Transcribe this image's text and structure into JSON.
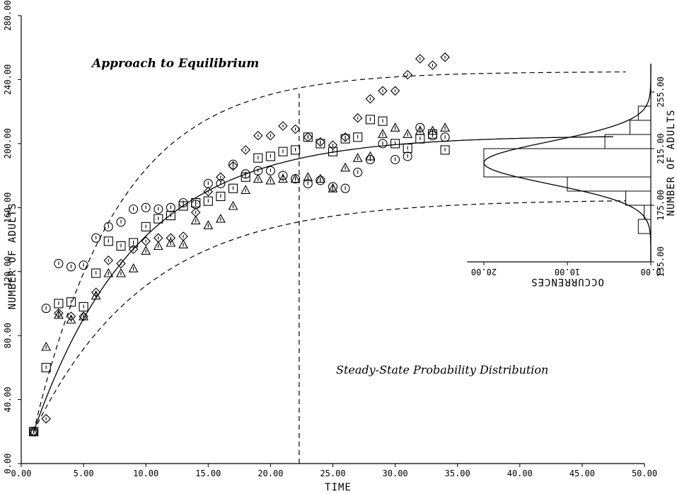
{
  "chart_data": {
    "type": "scatter",
    "xlabel": "TIME",
    "ylabel": "NUMBER OF ADULTS",
    "xlim": [
      0,
      50
    ],
    "ylim": [
      0,
      280
    ],
    "x_ticks": [
      "0.00",
      "5.00",
      "10.00",
      "15.00",
      "20.00",
      "25.00",
      "30.00",
      "35.00",
      "40.00",
      "45.00",
      "50.00"
    ],
    "y_ticks": [
      "0.00",
      "40.00",
      "80.00",
      "120.00",
      "160.00",
      "200.00",
      "240.00",
      "280.00"
    ],
    "annotations": [
      "Approach to Equilibrium",
      "Steady-State Probability Distribution"
    ],
    "equilibrium_time": 22.3,
    "series": [
      {
        "marker": "circle",
        "x": [
          1,
          2,
          3,
          4,
          5,
          6,
          7,
          8,
          9,
          10,
          11,
          12,
          13,
          14,
          15,
          16,
          17,
          18,
          19,
          20,
          21,
          22,
          23,
          24,
          25,
          26,
          27,
          28,
          29,
          30,
          31,
          32,
          33,
          34
        ],
        "y": [
          20,
          97,
          125,
          123,
          124,
          141,
          148,
          151,
          159,
          160,
          159,
          160,
          163,
          162,
          175,
          175,
          187,
          181,
          183,
          183,
          180,
          178,
          175,
          177,
          173,
          172,
          182,
          190,
          200,
          190,
          192,
          210,
          205,
          204
        ]
      },
      {
        "marker": "square",
        "x": [
          1,
          2,
          3,
          4,
          5,
          6,
          7,
          8,
          9,
          10,
          11,
          12,
          13,
          14,
          15,
          16,
          17,
          18,
          19,
          20,
          21,
          22,
          23,
          24,
          25,
          26,
          27,
          28,
          29,
          30,
          31,
          32,
          33,
          34
        ],
        "y": [
          20,
          60,
          100,
          101,
          98,
          119,
          139,
          136,
          138,
          148,
          153,
          155,
          161,
          163,
          164,
          167,
          172,
          179,
          191,
          192,
          195,
          196,
          204,
          200,
          195,
          203,
          204,
          215,
          214,
          200,
          197,
          203,
          206,
          196
        ]
      },
      {
        "marker": "triangle",
        "x": [
          1,
          2,
          3,
          4,
          5,
          6,
          7,
          8,
          9,
          10,
          11,
          12,
          13,
          14,
          15,
          16,
          17,
          18,
          19,
          20,
          21,
          22,
          23,
          24,
          25,
          26,
          27,
          28,
          29,
          30,
          31,
          32,
          33,
          34
        ],
        "y": [
          20,
          73,
          93,
          90,
          92,
          105,
          119,
          119,
          122,
          133,
          136,
          138,
          137,
          152,
          149,
          153,
          161,
          171,
          178,
          177,
          178,
          178,
          179,
          178,
          172,
          185,
          191,
          192,
          206,
          210,
          206,
          208,
          208,
          210
        ]
      },
      {
        "marker": "diamond",
        "x": [
          1,
          2,
          3,
          4,
          5,
          6,
          7,
          8,
          9,
          10,
          11,
          12,
          13,
          14,
          15,
          16,
          17,
          18,
          19,
          20,
          21,
          22,
          23,
          24,
          25,
          26,
          27,
          28,
          29,
          30,
          31,
          32,
          33,
          34
        ],
        "y": [
          20,
          28,
          94,
          92,
          92,
          107,
          127,
          125,
          134,
          139,
          141,
          141,
          142,
          157,
          170,
          179,
          186,
          196,
          205,
          205,
          211,
          209,
          204,
          201,
          199,
          204,
          216,
          228,
          233,
          233,
          243,
          253,
          249,
          254
        ]
      }
    ],
    "mean_curve": {
      "equilibrium": 205,
      "initial": 20,
      "rate": 0.12
    },
    "confidence_bands": {
      "upper_equilibrium": 245,
      "lower_equilibrium": 165
    },
    "histogram": {
      "xlabel": "OCCURRENCES",
      "ylabel": "NUMBER OF ADULTS",
      "x_ticks": [
        "0.00",
        "10.00",
        "20.00"
      ],
      "y_ticks": [
        "135.00",
        "175.00",
        "215.00",
        "255.00"
      ],
      "bins": [
        {
          "from": 155,
          "to": 165,
          "count": 1.5
        },
        {
          "from": 165,
          "to": 175,
          "count": 0.8
        },
        {
          "from": 175,
          "to": 185,
          "count": 3.0
        },
        {
          "from": 185,
          "to": 195,
          "count": 10.0
        },
        {
          "from": 195,
          "to": 215,
          "count": 20.0
        },
        {
          "from": 215,
          "to": 225,
          "count": 5.5
        },
        {
          "from": 225,
          "to": 235,
          "count": 2.5
        },
        {
          "from": 235,
          "to": 245,
          "count": 1.5
        }
      ]
    }
  }
}
